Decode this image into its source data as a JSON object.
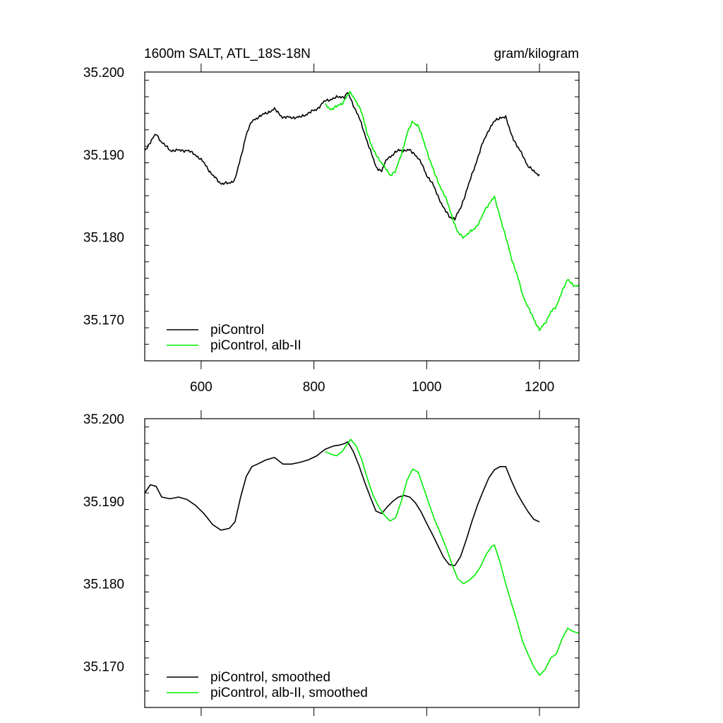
{
  "header": {
    "title_left": "1600m SALT, ATL_18S-18N",
    "title_right": "gram/kilogram"
  },
  "chart_data": [
    {
      "type": "line",
      "panel": "top",
      "xlim": [
        500,
        1270
      ],
      "ylim": [
        35.165,
        35.2
      ],
      "xticks": [
        600,
        800,
        1000,
        1200
      ],
      "xtick_labels": [
        "600",
        "800",
        "1000",
        "1200"
      ],
      "yticks": [
        35.17,
        35.18,
        35.19,
        35.2
      ],
      "ytick_labels": [
        "35.170",
        "35.180",
        "35.190",
        "35.200"
      ],
      "legend_placement": "bottom-left",
      "series": [
        {
          "name": "piControl",
          "color": "#000000",
          "noise": true,
          "x": [
            500,
            510,
            520,
            530,
            545,
            560,
            575,
            590,
            605,
            620,
            635,
            650,
            660,
            670,
            680,
            690,
            700,
            715,
            730,
            745,
            760,
            775,
            790,
            805,
            820,
            835,
            845,
            855,
            860,
            870,
            880,
            890,
            900,
            910,
            920,
            930,
            940,
            950,
            960,
            970,
            980,
            990,
            1000,
            1010,
            1020,
            1030,
            1040,
            1050,
            1060,
            1070,
            1080,
            1090,
            1100,
            1110,
            1120,
            1130,
            1140,
            1150,
            1160,
            1170,
            1180,
            1190,
            1200
          ],
          "y": [
            35.1905,
            35.1915,
            35.1925,
            35.1915,
            35.1905,
            35.1905,
            35.1905,
            35.19,
            35.189,
            35.1875,
            35.1865,
            35.1865,
            35.187,
            35.1895,
            35.1925,
            35.194,
            35.1945,
            35.195,
            35.1955,
            35.1945,
            35.1945,
            35.1945,
            35.195,
            35.1955,
            35.1965,
            35.1968,
            35.197,
            35.197,
            35.1975,
            35.196,
            35.1945,
            35.1925,
            35.1905,
            35.1885,
            35.188,
            35.1895,
            35.19,
            35.1905,
            35.1905,
            35.1905,
            35.19,
            35.189,
            35.1875,
            35.1865,
            35.185,
            35.1835,
            35.1825,
            35.1822,
            35.1835,
            35.1855,
            35.1875,
            35.1895,
            35.1915,
            35.193,
            35.194,
            35.1945,
            35.1945,
            35.1925,
            35.191,
            35.19,
            35.1885,
            35.188,
            35.1875
          ]
        },
        {
          "name": "piControl, alb-II",
          "color": "#00ee00",
          "noise": true,
          "x": [
            820,
            830,
            840,
            850,
            860,
            865,
            875,
            885,
            895,
            905,
            915,
            925,
            935,
            945,
            955,
            965,
            975,
            985,
            995,
            1005,
            1015,
            1025,
            1035,
            1045,
            1055,
            1065,
            1075,
            1085,
            1095,
            1105,
            1115,
            1120,
            1130,
            1140,
            1150,
            1160,
            1170,
            1180,
            1190,
            1200,
            1210,
            1220,
            1230,
            1240,
            1250,
            1260,
            1270
          ],
          "y": [
            35.196,
            35.1955,
            35.1958,
            35.1962,
            35.1972,
            35.1975,
            35.1965,
            35.195,
            35.1925,
            35.1905,
            35.1895,
            35.1885,
            35.1875,
            35.188,
            35.19,
            35.1925,
            35.194,
            35.1935,
            35.1915,
            35.1895,
            35.1875,
            35.186,
            35.1845,
            35.1825,
            35.1805,
            35.18,
            35.1805,
            35.181,
            35.182,
            35.1835,
            35.1845,
            35.1848,
            35.1825,
            35.18,
            35.1775,
            35.1755,
            35.173,
            35.1715,
            35.17,
            35.1688,
            35.1695,
            35.171,
            35.1715,
            35.1735,
            35.1748,
            35.1742,
            35.174
          ]
        }
      ]
    },
    {
      "type": "line",
      "panel": "bottom",
      "xlim": [
        500,
        1270
      ],
      "ylim": [
        35.165,
        35.2
      ],
      "xticks": [
        600,
        800,
        1000,
        1200
      ],
      "yticks": [
        35.17,
        35.18,
        35.19,
        35.2
      ],
      "ytick_labels": [
        "35.170",
        "35.180",
        "35.190",
        "35.200"
      ],
      "legend_placement": "bottom-left",
      "series": [
        {
          "name": "piControl, smoothed",
          "color": "#000000",
          "noise": false,
          "x": [
            500,
            510,
            520,
            530,
            545,
            560,
            575,
            590,
            605,
            620,
            635,
            650,
            660,
            670,
            680,
            690,
            700,
            715,
            730,
            745,
            760,
            775,
            790,
            805,
            820,
            835,
            845,
            855,
            860,
            870,
            880,
            890,
            900,
            910,
            920,
            930,
            940,
            950,
            960,
            970,
            980,
            990,
            1000,
            1010,
            1020,
            1030,
            1040,
            1050,
            1060,
            1070,
            1080,
            1090,
            1100,
            1110,
            1120,
            1130,
            1140,
            1150,
            1160,
            1170,
            1180,
            1190,
            1200
          ],
          "y": [
            35.191,
            35.192,
            35.1918,
            35.1905,
            35.1903,
            35.1905,
            35.1902,
            35.1895,
            35.1885,
            35.1872,
            35.1865,
            35.1867,
            35.1875,
            35.1905,
            35.193,
            35.1942,
            35.1945,
            35.195,
            35.1953,
            35.1945,
            35.1945,
            35.1947,
            35.195,
            35.1955,
            35.1963,
            35.1967,
            35.1968,
            35.197,
            35.1972,
            35.196,
            35.1943,
            35.1923,
            35.1905,
            35.1888,
            35.1885,
            35.1893,
            35.19,
            35.1905,
            35.1907,
            35.1905,
            35.1898,
            35.1887,
            35.1873,
            35.186,
            35.1846,
            35.1832,
            35.1823,
            35.1822,
            35.1833,
            35.1853,
            35.1875,
            35.1895,
            35.1912,
            35.1928,
            35.1938,
            35.1942,
            35.1942,
            35.1925,
            35.191,
            35.1898,
            35.1887,
            35.1878,
            35.1875
          ]
        },
        {
          "name": "piControl, alb-II, smoothed",
          "color": "#00ee00",
          "noise": false,
          "x": [
            820,
            830,
            840,
            850,
            860,
            865,
            875,
            885,
            895,
            905,
            915,
            925,
            935,
            945,
            955,
            965,
            975,
            985,
            995,
            1005,
            1015,
            1025,
            1035,
            1045,
            1055,
            1065,
            1075,
            1085,
            1095,
            1105,
            1115,
            1120,
            1130,
            1140,
            1150,
            1160,
            1170,
            1180,
            1190,
            1200,
            1210,
            1220,
            1230,
            1240,
            1250,
            1260,
            1270
          ],
          "y": [
            35.196,
            35.1957,
            35.1955,
            35.196,
            35.197,
            35.1975,
            35.1967,
            35.195,
            35.1927,
            35.1907,
            35.1893,
            35.1883,
            35.1876,
            35.188,
            35.19,
            35.1925,
            35.1939,
            35.1935,
            35.1915,
            35.1895,
            35.1876,
            35.186,
            35.1843,
            35.1823,
            35.1806,
            35.18,
            35.1804,
            35.181,
            35.182,
            35.1835,
            35.1845,
            35.1847,
            35.1826,
            35.18,
            35.1777,
            35.1755,
            35.173,
            35.1714,
            35.1699,
            35.1689,
            35.1696,
            35.171,
            35.1715,
            35.1733,
            35.1746,
            35.1742,
            35.174
          ]
        }
      ]
    }
  ]
}
